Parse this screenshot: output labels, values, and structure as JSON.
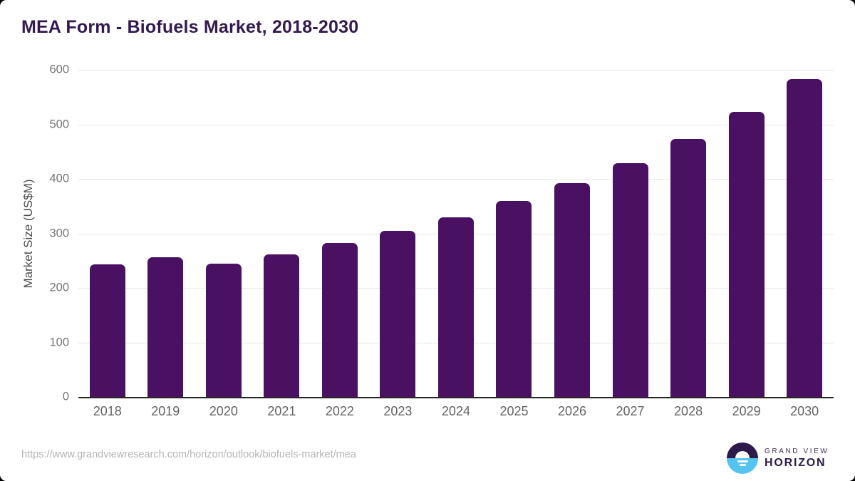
{
  "chart_data": {
    "type": "bar",
    "title": "MEA Form - Biofuels Market, 2018-2030",
    "categories": [
      "2018",
      "2019",
      "2020",
      "2021",
      "2022",
      "2023",
      "2024",
      "2025",
      "2026",
      "2027",
      "2028",
      "2029",
      "2030"
    ],
    "values": [
      243,
      256,
      245,
      262,
      282,
      304,
      330,
      359,
      392,
      429,
      473,
      523,
      583
    ],
    "xlabel": "",
    "ylabel": "Market Size (US$M)",
    "ylim": [
      0,
      600
    ],
    "yticks": [
      0,
      100,
      200,
      300,
      400,
      500,
      600
    ],
    "grid": true,
    "legend": "none",
    "bar_color": "#4a1162"
  },
  "colors": {
    "title": "#33194f",
    "bar": "#4a1162",
    "gridline": "#e7e7e7",
    "axis_line": "#262626",
    "tick_label": "#757575",
    "x_label": "#646464",
    "url_text": "#b5b5b5",
    "logo_purple": "#2b1a4a",
    "logo_blue": "#55c3f0"
  },
  "footer": {
    "source_url": "https://www.grandviewresearch.com/horizon/outlook/biofuels-market/mea",
    "brand_line1": "GRAND VIEW",
    "brand_line2": "HORIZON"
  }
}
